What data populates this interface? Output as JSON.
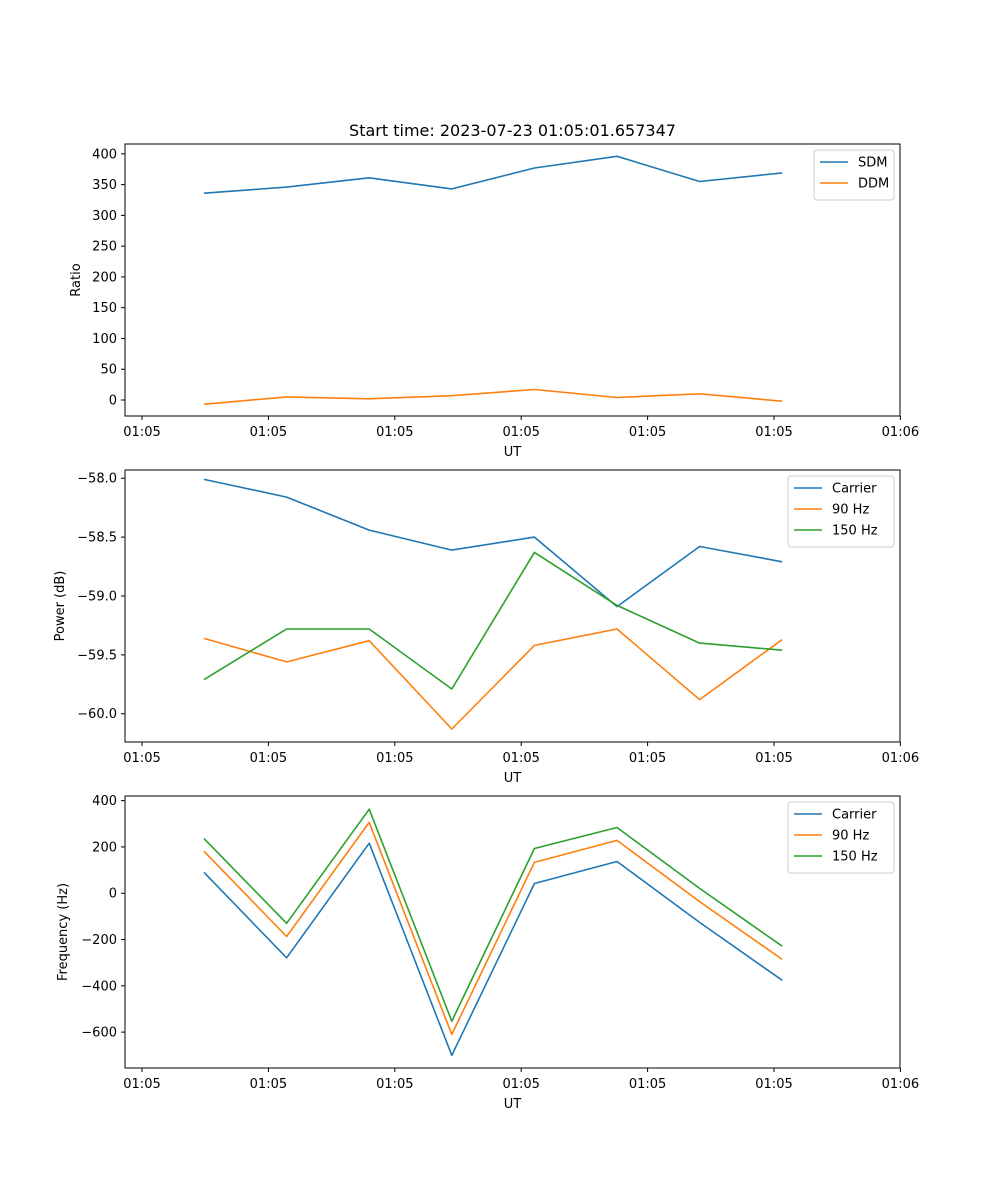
{
  "chart_data": [
    {
      "type": "line",
      "title": "Start time: 2023-07-23 01:05:01.657347",
      "xlabel": "UT",
      "ylabel": "Ratio",
      "xticklabels": [
        "01:05",
        "01:05",
        "01:05",
        "01:05",
        "01:05",
        "01:05",
        "01:06"
      ],
      "ylim": [
        -26,
        416
      ],
      "yticks": [
        0,
        50,
        100,
        150,
        200,
        250,
        300,
        350,
        400
      ],
      "yticklabels": [
        "0",
        "50",
        "100",
        "150",
        "200",
        "250",
        "300",
        "350",
        "400"
      ],
      "x": [
        1,
        2,
        3,
        4,
        5,
        6,
        7,
        8
      ],
      "legend_position": "top-right",
      "series": [
        {
          "name": "SDM",
          "color": "#1f77b4",
          "values": [
            336,
            346,
            361,
            343,
            377,
            396,
            355,
            369
          ]
        },
        {
          "name": "DDM",
          "color": "#ff7f0e",
          "values": [
            -7,
            5,
            2,
            7,
            17,
            4,
            10,
            -2
          ]
        }
      ]
    },
    {
      "type": "line",
      "title": "",
      "xlabel": "UT",
      "ylabel": "Power (dB)",
      "xticklabels": [
        "01:05",
        "01:05",
        "01:05",
        "01:05",
        "01:05",
        "01:05",
        "01:06"
      ],
      "ylim": [
        -60.24,
        -57.93
      ],
      "yticks": [
        -60.0,
        -59.5,
        -59.0,
        -58.5,
        -58.0
      ],
      "yticklabels": [
        "−60.0",
        "−59.5",
        "−59.0",
        "−58.5",
        "−58.0"
      ],
      "x": [
        1,
        2,
        3,
        4,
        5,
        6,
        7,
        8
      ],
      "legend_position": "top-right",
      "series": [
        {
          "name": "Carrier",
          "color": "#1f77b4",
          "values": [
            -58.01,
            -58.16,
            -58.44,
            -58.61,
            -58.5,
            -59.09,
            -58.58,
            -58.71
          ]
        },
        {
          "name": "90 Hz",
          "color": "#ff7f0e",
          "values": [
            -59.36,
            -59.56,
            -59.38,
            -60.13,
            -59.42,
            -59.28,
            -59.88,
            -59.37
          ]
        },
        {
          "name": "150 Hz",
          "color": "#2ca02c",
          "values": [
            -59.71,
            -59.28,
            -59.28,
            -59.79,
            -58.63,
            -59.08,
            -59.4,
            -59.46
          ]
        }
      ]
    },
    {
      "type": "line",
      "title": "",
      "xlabel": "UT",
      "ylabel": "Frequency (Hz)",
      "xticklabels": [
        "01:05",
        "01:05",
        "01:05",
        "01:05",
        "01:05",
        "01:05",
        "01:06"
      ],
      "ylim": [
        -755,
        420
      ],
      "yticks": [
        -600,
        -400,
        -200,
        0,
        200,
        400
      ],
      "yticklabels": [
        "−600",
        "−400",
        "−200",
        "0",
        "200",
        "400"
      ],
      "x": [
        1,
        2,
        3,
        4,
        5,
        6,
        7,
        8
      ],
      "legend_position": "top-right",
      "series": [
        {
          "name": "Carrier",
          "color": "#1f77b4",
          "values": [
            90,
            -279,
            216,
            -700,
            42,
            137,
            -126,
            -376
          ]
        },
        {
          "name": "90 Hz",
          "color": "#ff7f0e",
          "values": [
            181,
            -187,
            306,
            -610,
            133,
            228,
            -36,
            -286
          ]
        },
        {
          "name": "150 Hz",
          "color": "#2ca02c",
          "values": [
            236,
            -130,
            363,
            -553,
            193,
            284,
            21,
            -229
          ]
        }
      ]
    }
  ]
}
